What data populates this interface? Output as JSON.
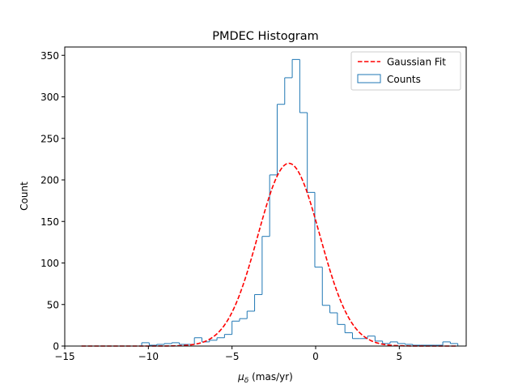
{
  "chart_data": {
    "type": "histogram",
    "title": "PMDEC Histogram",
    "xlabel_symbol": "μ",
    "xlabel_subscript": "δ",
    "xlabel_unit": " (mas/yr)",
    "ylabel": "Count",
    "xlim": [
      -15,
      9
    ],
    "ylim": [
      0,
      360
    ],
    "x_ticks": [
      -15,
      -10,
      -5,
      0,
      5
    ],
    "x_tick_labels": [
      "−15",
      "−10",
      "−5",
      "0",
      "5"
    ],
    "y_ticks": [
      0,
      50,
      100,
      150,
      200,
      250,
      300,
      350
    ],
    "y_tick_labels": [
      "0",
      "50",
      "100",
      "150",
      "200",
      "250",
      "300",
      "350"
    ],
    "grid": false,
    "legend_position": "top-right",
    "series": [
      {
        "name": "Gaussian Fit",
        "kind": "line",
        "style": "dashed",
        "color": "#ff0000",
        "mu": -1.6,
        "sigma": 1.85,
        "amplitude": 220,
        "x_range": [
          -14,
          8.4
        ]
      },
      {
        "name": "Counts",
        "kind": "step-histogram",
        "color": "#1f77b4",
        "bin_edges": [
          -14.0,
          -13.55,
          -13.1,
          -12.65,
          -12.2,
          -11.75,
          -11.3,
          -10.85,
          -10.4,
          -9.95,
          -9.5,
          -9.05,
          -8.6,
          -8.15,
          -7.7,
          -7.25,
          -6.8,
          -6.35,
          -5.9,
          -5.45,
          -5.0,
          -4.55,
          -4.1,
          -3.65,
          -3.2,
          -2.75,
          -2.3,
          -1.85,
          -1.4,
          -0.95,
          -0.5,
          -0.05,
          0.4,
          0.85,
          1.3,
          1.75,
          2.2,
          2.65,
          3.1,
          3.55,
          4.0,
          4.45,
          4.9,
          5.35,
          5.8,
          6.25,
          6.7,
          7.15,
          7.6,
          8.05,
          8.5
        ],
        "counts": [
          0,
          0,
          0,
          0,
          0,
          0,
          0,
          0,
          4,
          1,
          2,
          3,
          4,
          2,
          2,
          10,
          5,
          7,
          10,
          14,
          30,
          33,
          42,
          62,
          132,
          206,
          291,
          323,
          345,
          281,
          185,
          95,
          49,
          40,
          26,
          16,
          9,
          9,
          12,
          6,
          3,
          5,
          3,
          2,
          1,
          1,
          1,
          1,
          5,
          3
        ]
      }
    ]
  }
}
